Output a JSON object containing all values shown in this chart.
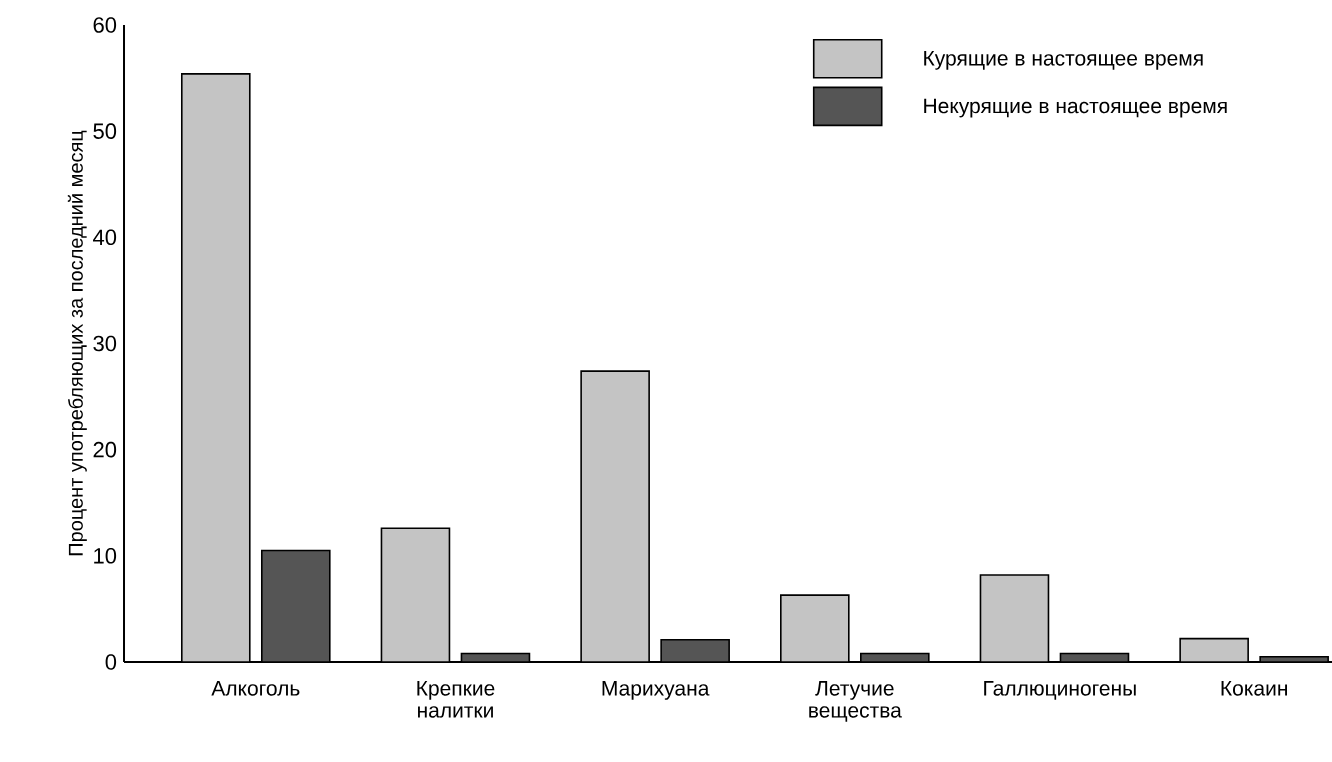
{
  "chart_data": {
    "type": "bar",
    "ylabel": "Процент употребляющих за последний месяц",
    "categories": [
      "Алкоголь",
      "Крепкие налитки",
      "Марихуана",
      "Летучие вещества",
      "Галлюциногены",
      "Кокаин"
    ],
    "series": [
      {
        "name": "Курящие в настоящее время",
        "color": "#c4c4c4",
        "values": [
          55.4,
          12.6,
          27.4,
          6.3,
          8.2,
          2.2
        ]
      },
      {
        "name": "Некурящие в настоящее время",
        "color": "#555555",
        "values": [
          10.5,
          0.8,
          2.1,
          0.8,
          0.8,
          0.5
        ]
      }
    ],
    "ylim": [
      0,
      60
    ],
    "yticks": [
      0,
      10,
      20,
      30,
      40,
      50,
      60
    ],
    "grid": false,
    "legend": "top right"
  }
}
